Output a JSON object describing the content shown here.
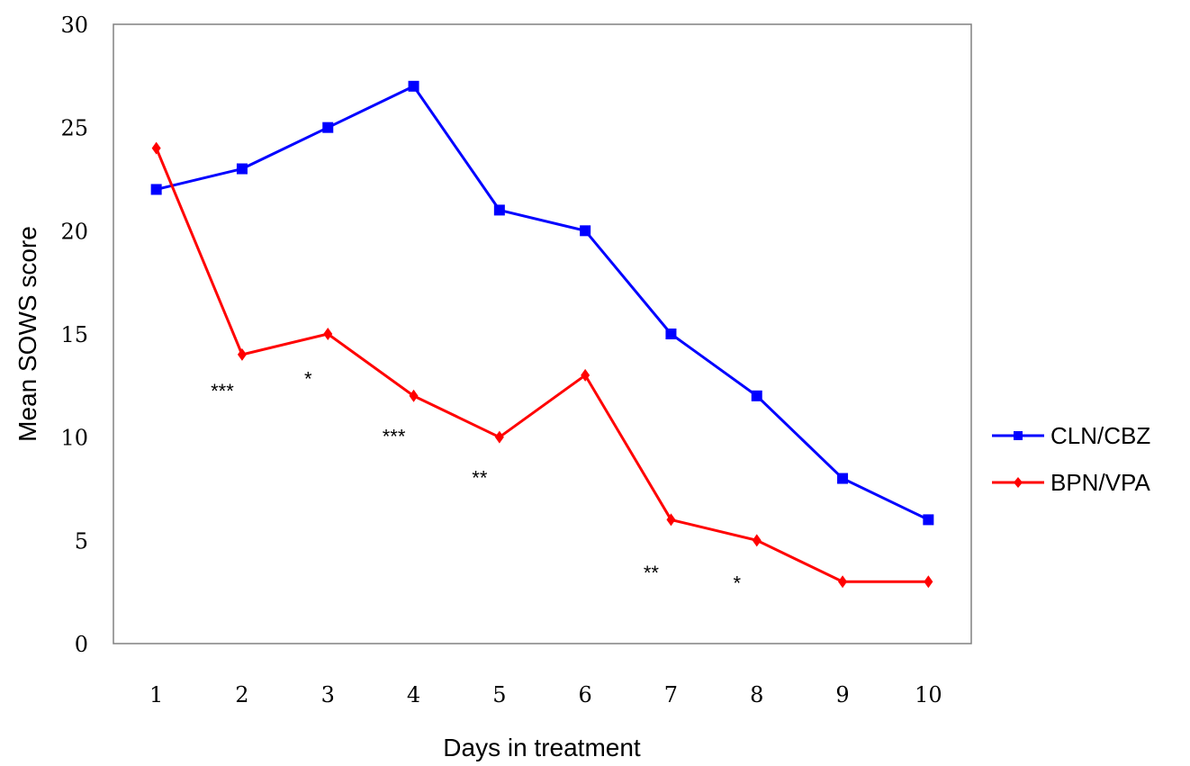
{
  "chart_data": {
    "type": "line",
    "title": "",
    "xlabel": "Days in treatment",
    "ylabel": "Mean SOWS score",
    "x": [
      1,
      2,
      3,
      4,
      5,
      6,
      7,
      8,
      9,
      10
    ],
    "ylim": [
      0,
      30
    ],
    "yticks": [
      0,
      5,
      10,
      15,
      20,
      25,
      30
    ],
    "grid": false,
    "legend_position": "right",
    "series": [
      {
        "name": "CLN/CBZ",
        "color": "#0000ff",
        "marker": "square",
        "values": [
          22,
          23,
          25,
          27,
          21,
          20,
          15,
          12,
          8,
          6
        ]
      },
      {
        "name": "BPN/VPA",
        "color": "#ff0000",
        "marker": "diamond",
        "values": [
          24,
          14,
          15,
          12,
          10,
          13,
          6,
          5,
          3,
          3
        ]
      }
    ],
    "annotations": [
      {
        "text": "***",
        "x": 2,
        "y": 11.9
      },
      {
        "text": "*",
        "x": 3,
        "y": 12.5
      },
      {
        "text": "***",
        "x": 4,
        "y": 9.7
      },
      {
        "text": "**",
        "x": 5,
        "y": 7.7
      },
      {
        "text": "**",
        "x": 7,
        "y": 3.1
      },
      {
        "text": "*",
        "x": 8,
        "y": 2.6
      }
    ]
  }
}
